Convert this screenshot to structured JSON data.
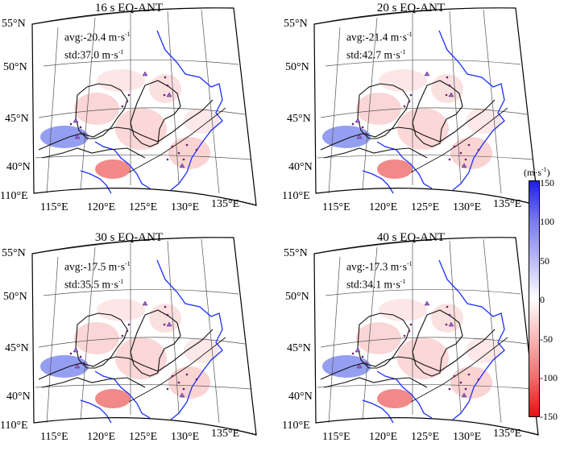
{
  "panels": [
    {
      "title": "16 s EQ-ANT",
      "avg": "avg:-20.4 m·s",
      "std": "std:37.0 m·s"
    },
    {
      "title": "20 s EQ-ANT",
      "avg": "avg:-21.4 m·s",
      "std": "std:42.7 m·s"
    },
    {
      "title": "30 s EQ-ANT",
      "avg": "avg:-17.5 m·s",
      "std": "std:35.5 m·s"
    },
    {
      "title": "40 s EQ-ANT",
      "avg": "avg:-17.3 m·s",
      "std": "std:34.1 m·s"
    }
  ],
  "unit_superscript": "-1",
  "latitudes": [
    "55°N",
    "50°N",
    "45°N",
    "40°N"
  ],
  "longitudes": [
    "110°E",
    "115°E",
    "120°E",
    "125°E",
    "130°E",
    "135°E"
  ],
  "colorbar": {
    "title": "(m·s",
    "title_sup": "-1",
    "title_end": ")",
    "ticks": [
      "150",
      "100",
      "50",
      "0",
      "-50",
      "-100",
      "-150"
    ],
    "colors": {
      "max": "#1f1fe0",
      "zero": "#ffffff",
      "min": "#e41010"
    }
  }
}
